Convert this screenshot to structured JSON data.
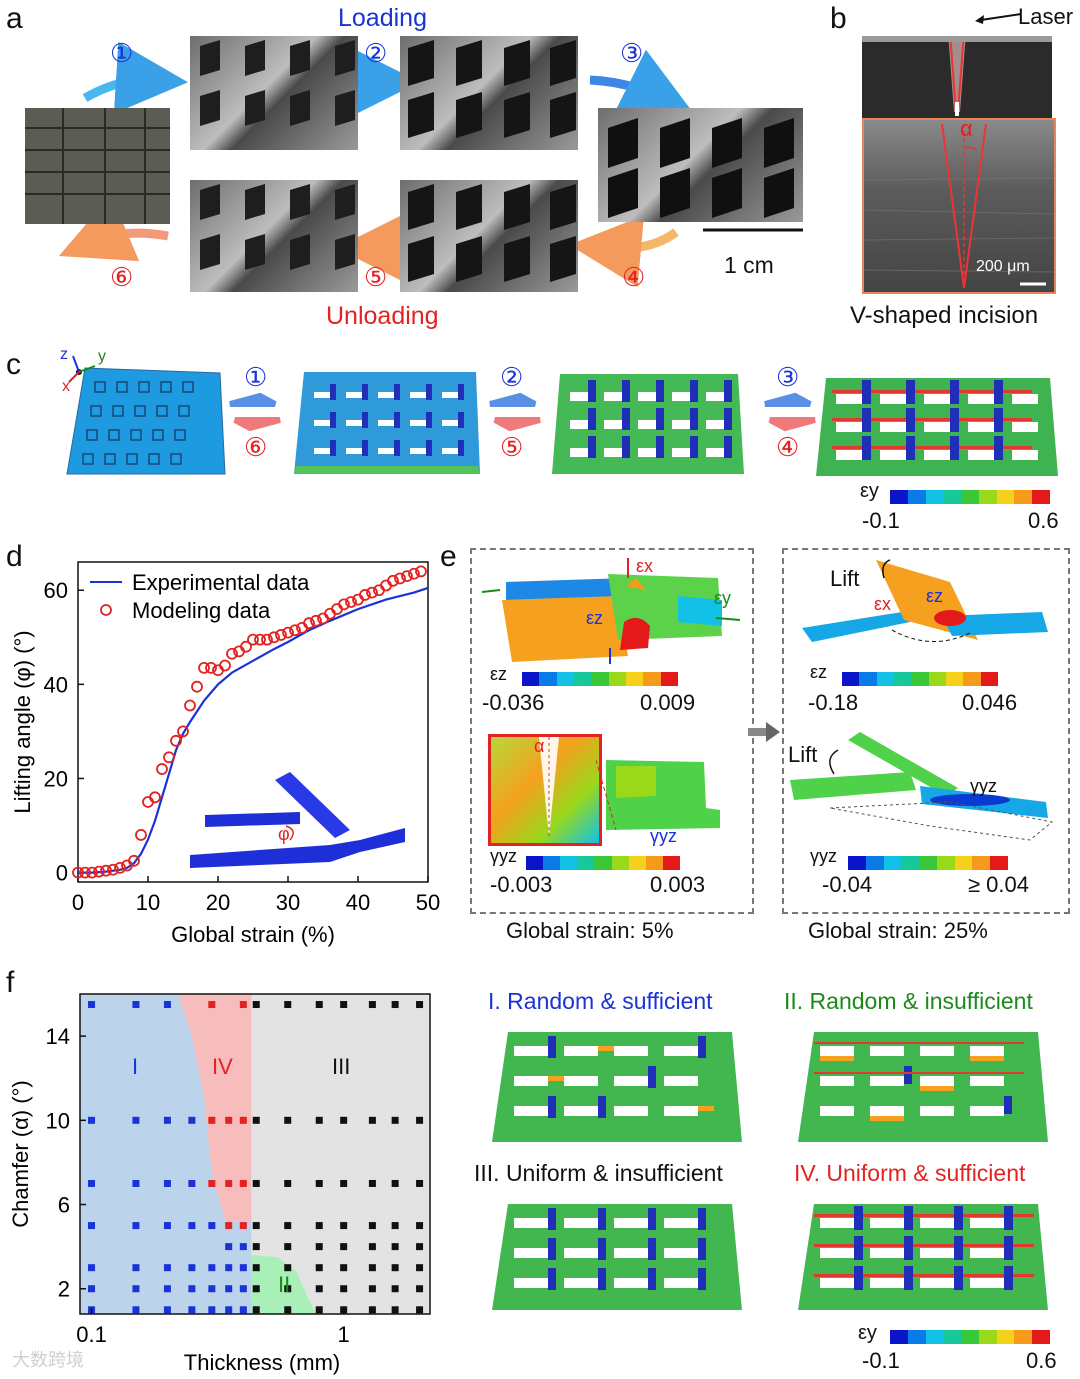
{
  "panels": {
    "a": "a",
    "b": "b",
    "c": "c",
    "d": "d",
    "e": "e",
    "f": "f"
  },
  "panel_a": {
    "title_loading": "Loading",
    "title_unloading": "Unloading",
    "steps": [
      "①",
      "②",
      "③",
      "④",
      "⑤",
      "⑥"
    ],
    "scale_bar": "1 cm"
  },
  "panel_b": {
    "laser": "Laser",
    "alpha": "α",
    "scale": "200 μm",
    "caption": "V-shaped incision"
  },
  "panel_c": {
    "axes": {
      "z": "z",
      "y": "y",
      "x": "x"
    },
    "forward": [
      "①",
      "②",
      "③"
    ],
    "backward": [
      "⑥",
      "⑤",
      "④"
    ],
    "colorbar": {
      "label": "εy",
      "min": "-0.1",
      "max": "0.6"
    }
  },
  "panel_e": {
    "strain_left": "Global strain: 5%",
    "strain_right": "Global strain: 25%",
    "lift": "Lift",
    "eps_x": "εx",
    "eps_y": "εy",
    "eps_z": "εz",
    "gamma_yz": "γyz",
    "alpha": "α",
    "cb1": {
      "label": "εz",
      "min": "-0.036",
      "max": "0.009"
    },
    "cb2": {
      "label": "εz",
      "min": "-0.18",
      "max": "0.046"
    },
    "cb3": {
      "label": "γyz",
      "min": "-0.003",
      "max": "0.003"
    },
    "cb4": {
      "label": "γyz",
      "min": "-0.04",
      "max": "≥ 0.04"
    }
  },
  "panel_f": {
    "regions": [
      "I",
      "II",
      "III",
      "IV"
    ],
    "legend": [
      "I. Random & sufficient",
      "II. Random & insufficient",
      "III. Uniform & insufficient",
      "IV. Uniform & sufficient"
    ],
    "colorbar": {
      "label": "εy",
      "min": "-0.1",
      "max": "0.6"
    }
  },
  "colors": {
    "blue": "#1a33d6",
    "red": "#e32222",
    "green": "#1a8a1a",
    "region_I": "#bcd3ec",
    "region_II": "#a8f0b8",
    "region_III": "#e3e3e3",
    "region_IV": "#f7bcbc"
  },
  "watermark": "大数跨境",
  "chart_data": [
    {
      "type": "line",
      "id": "d",
      "xlabel": "Global strain (%)",
      "ylabel": "Lifting angle (φ) (°)",
      "xlim": [
        0,
        50
      ],
      "ylim": [
        -2,
        66
      ],
      "xticks": [
        0,
        10,
        20,
        30,
        40,
        50
      ],
      "yticks": [
        0,
        20,
        40,
        60
      ],
      "inset_label": "φ",
      "series": [
        {
          "name": "Experimental data",
          "style": "line",
          "x": [
            0,
            2,
            4,
            6,
            7,
            8,
            9,
            10,
            11,
            12,
            13,
            14,
            15,
            16,
            18,
            20,
            22,
            25,
            28,
            30,
            33,
            36,
            40,
            44,
            48,
            50
          ],
          "y": [
            0,
            0,
            0.2,
            0.6,
            1,
            2,
            4,
            7,
            11,
            16,
            21,
            26,
            29.5,
            32,
            36.5,
            40,
            42.5,
            45,
            47.5,
            49,
            51.5,
            53.5,
            56,
            58,
            59.5,
            60.5
          ]
        },
        {
          "name": "Modeling data",
          "style": "marker",
          "x": [
            0,
            1,
            2,
            3,
            4,
            5,
            6,
            7,
            8,
            9,
            10,
            11,
            12,
            13,
            14,
            15,
            16,
            17,
            18,
            19,
            20,
            21,
            22,
            23,
            24,
            25,
            26,
            27,
            28,
            29,
            30,
            31,
            32,
            33,
            34,
            35,
            36,
            37,
            38,
            39,
            40,
            41,
            42,
            43,
            44,
            45,
            46,
            47,
            48,
            49
          ],
          "y": [
            0,
            0,
            0,
            0.2,
            0.4,
            0.6,
            1,
            1.5,
            2.5,
            8,
            15,
            16,
            22,
            24.5,
            28,
            30,
            35.5,
            39.5,
            43.5,
            43.5,
            43,
            44,
            46.5,
            47,
            48,
            49.5,
            49.5,
            49.5,
            50,
            50.5,
            51,
            51.5,
            52,
            53,
            53.5,
            54,
            55,
            56,
            57,
            57.5,
            58,
            59,
            59.5,
            60,
            61,
            62,
            62.5,
            63,
            63.5,
            64
          ]
        }
      ]
    },
    {
      "type": "scatter",
      "id": "f",
      "xlabel": "Thickness (mm)",
      "ylabel": "Chamfer (α) (°)",
      "xscale": "log",
      "xlim": [
        0.09,
        2.2
      ],
      "ylim": [
        0.8,
        16
      ],
      "xticks": [
        0.1,
        1
      ],
      "yticks": [
        2,
        6,
        10,
        14
      ],
      "series": [
        {
          "name": "I",
          "color": "blue",
          "points": [
            [
              0.1,
              15.5
            ],
            [
              0.15,
              15.5
            ],
            [
              0.2,
              15.5
            ],
            [
              0.1,
              10
            ],
            [
              0.15,
              10
            ],
            [
              0.2,
              10
            ],
            [
              0.25,
              10
            ],
            [
              0.1,
              7
            ],
            [
              0.15,
              7
            ],
            [
              0.2,
              7
            ],
            [
              0.25,
              7
            ],
            [
              0.1,
              5
            ],
            [
              0.15,
              5
            ],
            [
              0.2,
              5
            ],
            [
              0.25,
              5
            ],
            [
              0.3,
              5
            ],
            [
              0.35,
              4
            ],
            [
              0.4,
              4
            ],
            [
              0.1,
              3
            ],
            [
              0.15,
              3
            ],
            [
              0.2,
              3
            ],
            [
              0.25,
              3
            ],
            [
              0.3,
              3
            ],
            [
              0.35,
              3
            ],
            [
              0.4,
              3
            ],
            [
              0.1,
              2
            ],
            [
              0.15,
              2
            ],
            [
              0.2,
              2
            ],
            [
              0.25,
              2
            ],
            [
              0.3,
              2
            ],
            [
              0.35,
              2
            ],
            [
              0.4,
              2
            ],
            [
              0.1,
              1
            ],
            [
              0.15,
              1
            ],
            [
              0.2,
              1
            ],
            [
              0.25,
              1
            ],
            [
              0.3,
              1
            ],
            [
              0.35,
              1
            ],
            [
              0.4,
              1
            ]
          ]
        },
        {
          "name": "IV",
          "color": "red",
          "points": [
            [
              0.3,
              15.5
            ],
            [
              0.4,
              15.5
            ],
            [
              0.3,
              10
            ],
            [
              0.35,
              10
            ],
            [
              0.4,
              10
            ],
            [
              0.3,
              7
            ],
            [
              0.35,
              7
            ],
            [
              0.4,
              7
            ],
            [
              0.35,
              5
            ],
            [
              0.4,
              5
            ]
          ]
        },
        {
          "name": "III",
          "color": "black",
          "points": [
            [
              0.45,
              15.5
            ],
            [
              0.6,
              15.5
            ],
            [
              0.8,
              15.5
            ],
            [
              1.0,
              15.5
            ],
            [
              1.3,
              15.5
            ],
            [
              1.6,
              15.5
            ],
            [
              2.0,
              15.5
            ],
            [
              0.45,
              10
            ],
            [
              0.6,
              10
            ],
            [
              0.8,
              10
            ],
            [
              1.0,
              10
            ],
            [
              1.3,
              10
            ],
            [
              1.6,
              10
            ],
            [
              2.0,
              10
            ],
            [
              0.45,
              7
            ],
            [
              0.6,
              7
            ],
            [
              0.8,
              7
            ],
            [
              1.0,
              7
            ],
            [
              1.3,
              7
            ],
            [
              1.6,
              7
            ],
            [
              2.0,
              7
            ],
            [
              0.45,
              5
            ],
            [
              0.6,
              5
            ],
            [
              0.8,
              5
            ],
            [
              1.0,
              5
            ],
            [
              1.3,
              5
            ],
            [
              1.6,
              5
            ],
            [
              2.0,
              5
            ],
            [
              0.45,
              4
            ],
            [
              0.6,
              4
            ],
            [
              0.8,
              4
            ],
            [
              1.0,
              4
            ],
            [
              1.3,
              4
            ],
            [
              1.6,
              4
            ],
            [
              2.0,
              4
            ],
            [
              0.8,
              3
            ],
            [
              1.0,
              3
            ],
            [
              1.3,
              3
            ],
            [
              1.6,
              3
            ],
            [
              2.0,
              3
            ],
            [
              0.8,
              2
            ],
            [
              1.0,
              2
            ],
            [
              1.3,
              2
            ],
            [
              1.6,
              2
            ],
            [
              2.0,
              2
            ],
            [
              1.0,
              1
            ],
            [
              1.3,
              1
            ],
            [
              1.6,
              1
            ],
            [
              2.0,
              1
            ]
          ]
        },
        {
          "name": "II",
          "color": "black",
          "points": [
            [
              0.45,
              3
            ],
            [
              0.6,
              3
            ],
            [
              0.45,
              2
            ],
            [
              0.6,
              2
            ],
            [
              0.45,
              1
            ],
            [
              0.6,
              1
            ],
            [
              0.8,
              1
            ]
          ]
        }
      ]
    }
  ]
}
